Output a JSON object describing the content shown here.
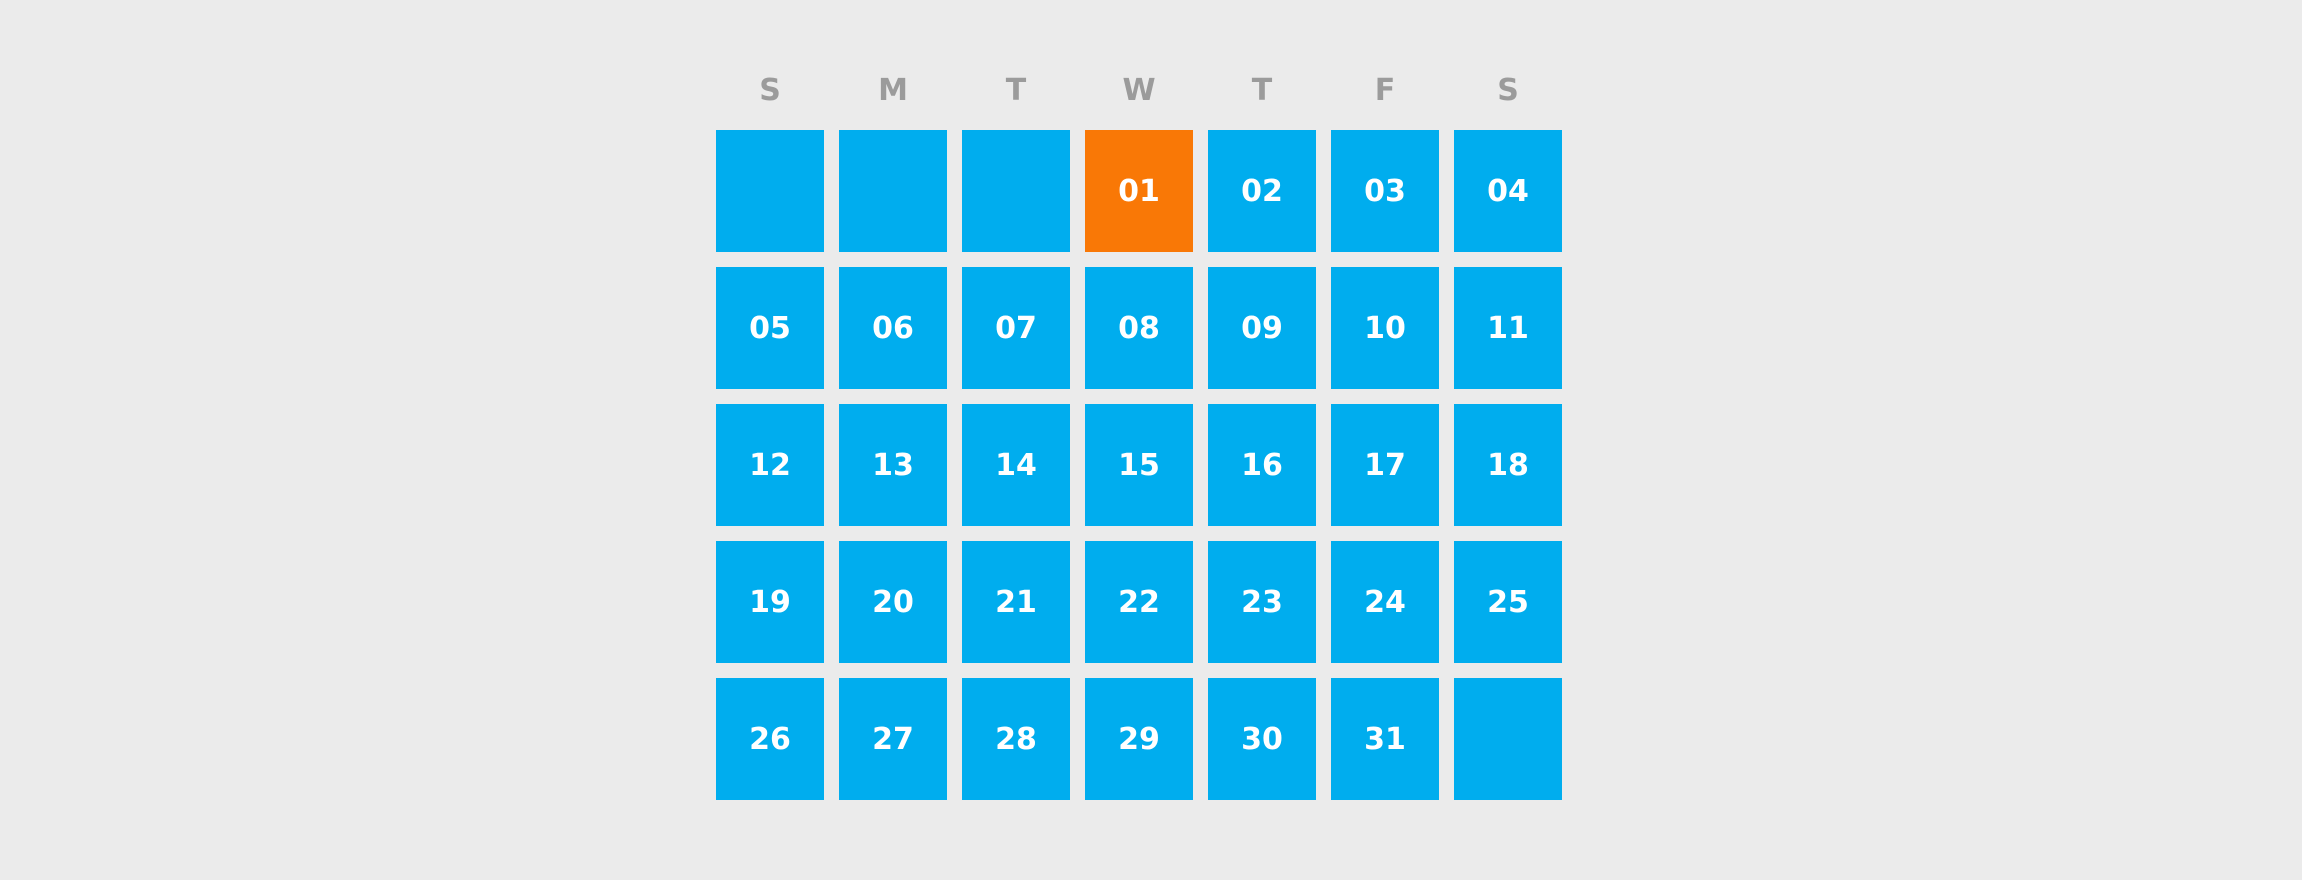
{
  "colors": {
    "background": "#ebebeb",
    "day_tile": "#00adee",
    "today_tile": "#f97806",
    "day_text": "#ffffff",
    "weekday_text": "#9b9b9b"
  },
  "calendar": {
    "weekdays": [
      "S",
      "M",
      "T",
      "W",
      "T",
      "F",
      "S"
    ],
    "cells": [
      "",
      "",
      "",
      "01",
      "02",
      "03",
      "04",
      "05",
      "06",
      "07",
      "08",
      "09",
      "10",
      "11",
      "12",
      "13",
      "14",
      "15",
      "16",
      "17",
      "18",
      "19",
      "20",
      "21",
      "22",
      "23",
      "24",
      "25",
      "26",
      "27",
      "28",
      "29",
      "30",
      "31",
      ""
    ],
    "today": "01"
  }
}
